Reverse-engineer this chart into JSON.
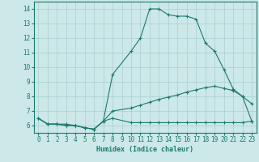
{
  "xlabel": "Humidex (Indice chaleur)",
  "xlim": [
    -0.5,
    23.5
  ],
  "ylim": [
    5.5,
    14.5
  ],
  "xticks": [
    0,
    1,
    2,
    3,
    4,
    5,
    6,
    7,
    8,
    9,
    10,
    11,
    12,
    13,
    14,
    15,
    16,
    17,
    18,
    19,
    20,
    21,
    22,
    23
  ],
  "yticks": [
    6,
    7,
    8,
    9,
    10,
    11,
    12,
    13,
    14
  ],
  "bg_color": "#cce8e8",
  "line_color": "#1a7a6e",
  "grid_color": "#aacfcf",
  "lines": [
    {
      "x": [
        0,
        1,
        2,
        3,
        4,
        5,
        6,
        7,
        8,
        10,
        11,
        12,
        13,
        14,
        15,
        16,
        17,
        18,
        19,
        20,
        21,
        22,
        23
      ],
      "y": [
        6.5,
        6.1,
        6.1,
        6.1,
        6.0,
        5.85,
        5.75,
        6.3,
        9.5,
        11.1,
        12.0,
        14.0,
        14.0,
        13.6,
        13.5,
        13.5,
        13.3,
        11.65,
        11.1,
        9.85,
        8.5,
        8.0,
        7.5
      ]
    },
    {
      "x": [
        0,
        1,
        2,
        3,
        4,
        5,
        6,
        7,
        8,
        10,
        11,
        12,
        13,
        14,
        15,
        16,
        17,
        18,
        19,
        20,
        21,
        22,
        23
      ],
      "y": [
        6.5,
        6.1,
        6.1,
        6.0,
        6.0,
        5.85,
        5.75,
        6.3,
        7.0,
        7.2,
        7.4,
        7.6,
        7.8,
        7.95,
        8.1,
        8.3,
        8.45,
        8.6,
        8.7,
        8.55,
        8.4,
        8.0,
        6.3
      ]
    },
    {
      "x": [
        0,
        1,
        2,
        3,
        4,
        5,
        6,
        7,
        8,
        10,
        11,
        12,
        13,
        14,
        15,
        16,
        17,
        18,
        19,
        20,
        21,
        22,
        23
      ],
      "y": [
        6.5,
        6.1,
        6.1,
        6.0,
        6.0,
        5.85,
        5.75,
        6.3,
        6.5,
        6.2,
        6.2,
        6.2,
        6.2,
        6.2,
        6.2,
        6.2,
        6.2,
        6.2,
        6.2,
        6.2,
        6.2,
        6.2,
        6.3
      ]
    }
  ]
}
